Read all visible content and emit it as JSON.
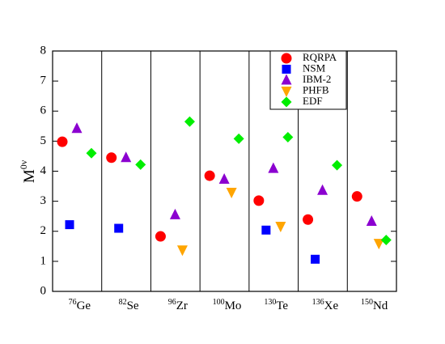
{
  "chart_data": {
    "type": "categorical-scatter",
    "y_label": "M",
    "y_label_sup": "0ν",
    "categories": [
      {
        "mass": "76",
        "symbol": "Ge"
      },
      {
        "mass": "82",
        "symbol": "Se"
      },
      {
        "mass": "96",
        "symbol": "Zr"
      },
      {
        "mass": "100",
        "symbol": "Mo"
      },
      {
        "mass": "130",
        "symbol": "Te"
      },
      {
        "mass": "136",
        "symbol": "Xe"
      },
      {
        "mass": "150",
        "symbol": "Nd"
      }
    ],
    "series": [
      {
        "name": "RQRPA",
        "color": "#ff0000",
        "marker": "circle",
        "values": [
          4.98,
          4.45,
          1.83,
          3.85,
          3.02,
          2.39,
          3.16
        ]
      },
      {
        "name": "NSM",
        "color": "#0000ff",
        "marker": "square",
        "values": [
          2.22,
          2.1,
          null,
          null,
          2.04,
          1.07,
          null
        ]
      },
      {
        "name": "IBM-2",
        "color": "#8b00d0",
        "marker": "triangle-up",
        "values": [
          5.42,
          4.45,
          2.55,
          3.73,
          4.09,
          3.36,
          2.33
        ]
      },
      {
        "name": "PHFB",
        "color": "#ffa500",
        "marker": "triangle-down",
        "values": [
          null,
          null,
          1.38,
          3.3,
          2.17,
          null,
          1.6
        ]
      },
      {
        "name": "EDF",
        "color": "#00ee00",
        "marker": "diamond",
        "values": [
          4.6,
          4.22,
          5.65,
          5.08,
          5.13,
          4.2,
          1.71
        ]
      }
    ],
    "ylim": [
      0,
      8
    ],
    "yticks": [
      0,
      1,
      2,
      3,
      4,
      5,
      6,
      7,
      8
    ],
    "category_dividers": true,
    "legend": "top-right"
  }
}
